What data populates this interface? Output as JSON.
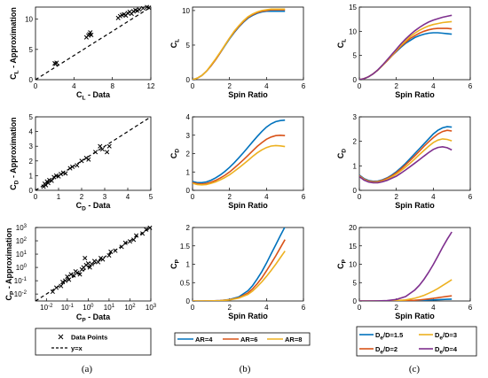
{
  "figure": {
    "panel_letters": [
      "(a)",
      "(b)",
      "(c)"
    ],
    "legend_a": [
      {
        "label": "Data Points",
        "marker": "x"
      },
      {
        "label": "y=x",
        "marker": "dashed-line"
      }
    ],
    "legend_b": [
      {
        "label": "AR=4",
        "color": "#0072BD"
      },
      {
        "label": "AR=6",
        "color": "#D95319"
      },
      {
        "label": "AR=8",
        "color": "#EDB120"
      }
    ],
    "legend_c": [
      {
        "label": "D",
        "sub": "e",
        "suffix": "/D=1.5",
        "color": "#0072BD"
      },
      {
        "label": "D",
        "sub": "e",
        "suffix": "/D=3",
        "color": "#EDB120"
      },
      {
        "label": "D",
        "sub": "e",
        "suffix": "/D=2",
        "color": "#D95319"
      },
      {
        "label": "D",
        "sub": "e",
        "suffix": "/D=4",
        "color": "#7E2F8E"
      }
    ]
  },
  "chart_data": [
    {
      "id": "a1",
      "type": "scatter",
      "xlabel": "C",
      "xlabel_sub": "L",
      "xlabel_suffix": " - Data",
      "ylabel": "C",
      "ylabel_sub": "L",
      "ylabel_suffix": " - Approximation",
      "xlim": [
        0,
        12
      ],
      "ylim": [
        0,
        12
      ],
      "xticks": [
        0,
        4,
        8,
        12
      ],
      "yticks": [
        0,
        5,
        10
      ],
      "reference_line": "y=x",
      "points": [
        [
          2.0,
          2.7
        ],
        [
          2.1,
          2.6
        ],
        [
          2.2,
          2.8
        ],
        [
          5.3,
          7.0
        ],
        [
          5.5,
          7.3
        ],
        [
          5.6,
          7.5
        ],
        [
          5.7,
          7.8
        ],
        [
          5.8,
          7.4
        ],
        [
          8.6,
          10.2
        ],
        [
          8.8,
          10.5
        ],
        [
          9.0,
          10.7
        ],
        [
          9.2,
          10.8
        ],
        [
          9.4,
          10.6
        ],
        [
          9.6,
          11.0
        ],
        [
          9.8,
          11.2
        ],
        [
          10.0,
          10.9
        ],
        [
          10.2,
          11.3
        ],
        [
          10.4,
          11.5
        ],
        [
          10.6,
          11.4
        ],
        [
          10.8,
          11.6
        ],
        [
          11.2,
          11.8
        ],
        [
          11.6,
          12.0
        ],
        [
          11.8,
          11.9
        ]
      ]
    },
    {
      "id": "b1",
      "type": "line",
      "xlabel": "Spin Ratio",
      "ylabel": "C",
      "ylabel_sub": "L",
      "xlim": [
        0,
        6
      ],
      "ylim": [
        0,
        10.5
      ],
      "xticks": [
        0,
        2,
        4,
        6
      ],
      "yticks": [
        0,
        5,
        10
      ],
      "x": [
        0,
        0.25,
        0.5,
        0.75,
        1,
        1.25,
        1.5,
        1.75,
        2,
        2.25,
        2.5,
        2.75,
        3,
        3.25,
        3.5,
        3.75,
        4,
        4.25,
        4.5,
        4.75,
        5
      ],
      "series": [
        {
          "name": "AR=4",
          "color": "#0072BD",
          "values": [
            0,
            0.2,
            0.6,
            1.2,
            2.0,
            2.9,
            3.9,
            4.9,
            5.9,
            6.8,
            7.6,
            8.3,
            8.9,
            9.3,
            9.6,
            9.8,
            9.9,
            9.9,
            9.9,
            9.9,
            9.9
          ]
        },
        {
          "name": "AR=6",
          "color": "#D95319",
          "values": [
            0,
            0.2,
            0.6,
            1.2,
            2.0,
            2.9,
            3.9,
            5.0,
            6.0,
            6.9,
            7.7,
            8.4,
            9.0,
            9.4,
            9.7,
            9.9,
            10.0,
            10.1,
            10.1,
            10.1,
            10.1
          ]
        },
        {
          "name": "AR=8",
          "color": "#EDB120",
          "values": [
            0,
            0.2,
            0.6,
            1.2,
            2.1,
            3.0,
            4.0,
            5.0,
            6.0,
            7.0,
            7.8,
            8.5,
            9.1,
            9.5,
            9.8,
            10.0,
            10.1,
            10.2,
            10.2,
            10.2,
            10.2
          ]
        }
      ]
    },
    {
      "id": "c1",
      "type": "line",
      "xlabel": "Spin Ratio",
      "ylabel": "C",
      "ylabel_sub": "L",
      "xlim": [
        0,
        6
      ],
      "ylim": [
        0,
        15
      ],
      "xticks": [
        0,
        2,
        4,
        6
      ],
      "yticks": [
        0,
        5,
        10,
        15
      ],
      "x": [
        0,
        0.25,
        0.5,
        0.75,
        1,
        1.25,
        1.5,
        1.75,
        2,
        2.25,
        2.5,
        2.75,
        3,
        3.25,
        3.5,
        3.75,
        4,
        4.25,
        4.5,
        4.75,
        5
      ],
      "series": [
        {
          "name": "De/D=1.5",
          "color": "#0072BD",
          "values": [
            0,
            0.2,
            0.6,
            1.2,
            2.0,
            2.9,
            3.9,
            4.9,
            5.8,
            6.7,
            7.5,
            8.1,
            8.7,
            9.1,
            9.4,
            9.6,
            9.7,
            9.7,
            9.6,
            9.5,
            9.4
          ]
        },
        {
          "name": "De/D=2",
          "color": "#D95319",
          "values": [
            0,
            0.2,
            0.6,
            1.2,
            2.0,
            2.9,
            3.9,
            4.9,
            5.9,
            6.9,
            7.7,
            8.5,
            9.1,
            9.6,
            10.0,
            10.3,
            10.5,
            10.6,
            10.6,
            10.6,
            10.5
          ]
        },
        {
          "name": "De/D=3",
          "color": "#EDB120",
          "values": [
            0,
            0.2,
            0.6,
            1.2,
            2.0,
            2.9,
            4.0,
            5.0,
            6.1,
            7.1,
            8.0,
            8.9,
            9.6,
            10.2,
            10.7,
            11.1,
            11.4,
            11.6,
            11.8,
            11.9,
            12.0
          ]
        },
        {
          "name": "De/D=4",
          "color": "#7E2F8E",
          "values": [
            0,
            0.2,
            0.6,
            1.2,
            2.0,
            3.0,
            4.1,
            5.2,
            6.3,
            7.4,
            8.4,
            9.3,
            10.1,
            10.8,
            11.4,
            11.9,
            12.3,
            12.6,
            12.9,
            13.1,
            13.3
          ]
        }
      ]
    },
    {
      "id": "a2",
      "type": "scatter",
      "xlabel": "C",
      "xlabel_sub": "D",
      "xlabel_suffix": " - Data",
      "ylabel": "C",
      "ylabel_sub": "D",
      "ylabel_suffix": " - Approximation",
      "xlim": [
        0,
        5
      ],
      "ylim": [
        0,
        5
      ],
      "xticks": [
        0,
        1,
        2,
        3,
        4,
        5
      ],
      "yticks": [
        0,
        1,
        2,
        3,
        4,
        5
      ],
      "reference_line": "y=x",
      "points": [
        [
          0.35,
          0.25
        ],
        [
          0.4,
          0.45
        ],
        [
          0.45,
          0.35
        ],
        [
          0.5,
          0.6
        ],
        [
          0.55,
          0.5
        ],
        [
          0.6,
          0.7
        ],
        [
          0.7,
          0.65
        ],
        [
          0.8,
          0.9
        ],
        [
          0.9,
          1.0
        ],
        [
          1.0,
          0.95
        ],
        [
          1.1,
          1.1
        ],
        [
          1.2,
          1.2
        ],
        [
          1.3,
          1.15
        ],
        [
          1.5,
          1.5
        ],
        [
          1.6,
          1.6
        ],
        [
          1.8,
          1.7
        ],
        [
          2.0,
          2.0
        ],
        [
          2.2,
          2.2
        ],
        [
          2.3,
          2.1
        ],
        [
          2.6,
          2.6
        ],
        [
          2.8,
          3.0
        ],
        [
          2.9,
          2.8
        ],
        [
          3.1,
          2.6
        ],
        [
          3.2,
          3.0
        ]
      ]
    },
    {
      "id": "b2",
      "type": "line",
      "xlabel": "Spin Ratio",
      "ylabel": "C",
      "ylabel_sub": "D",
      "xlim": [
        0,
        6
      ],
      "ylim": [
        0,
        4
      ],
      "xticks": [
        0,
        2,
        4,
        6
      ],
      "yticks": [
        0,
        1,
        2,
        3,
        4
      ],
      "x": [
        0,
        0.25,
        0.5,
        0.75,
        1,
        1.25,
        1.5,
        1.75,
        2,
        2.25,
        2.5,
        2.75,
        3,
        3.25,
        3.5,
        3.75,
        4,
        4.25,
        4.5,
        4.75,
        5
      ],
      "series": [
        {
          "name": "AR=4",
          "color": "#0072BD",
          "values": [
            0.48,
            0.42,
            0.42,
            0.46,
            0.55,
            0.68,
            0.84,
            1.03,
            1.25,
            1.5,
            1.77,
            2.05,
            2.34,
            2.64,
            2.93,
            3.2,
            3.44,
            3.62,
            3.74,
            3.8,
            3.82
          ]
        },
        {
          "name": "AR=6",
          "color": "#D95319",
          "values": [
            0.42,
            0.36,
            0.34,
            0.37,
            0.44,
            0.54,
            0.67,
            0.82,
            1.0,
            1.21,
            1.43,
            1.66,
            1.9,
            2.15,
            2.39,
            2.6,
            2.78,
            2.9,
            2.98,
            3.0,
            2.98
          ]
        },
        {
          "name": "AR=8",
          "color": "#EDB120",
          "values": [
            0.38,
            0.32,
            0.3,
            0.32,
            0.38,
            0.46,
            0.57,
            0.7,
            0.85,
            1.03,
            1.22,
            1.42,
            1.63,
            1.84,
            2.04,
            2.2,
            2.33,
            2.41,
            2.44,
            2.42,
            2.38
          ]
        }
      ]
    },
    {
      "id": "c2",
      "type": "line",
      "xlabel": "Spin Ratio",
      "ylabel": "C",
      "ylabel_sub": "D",
      "xlim": [
        0,
        6
      ],
      "ylim": [
        0,
        3
      ],
      "xticks": [
        0,
        2,
        4,
        6
      ],
      "yticks": [
        0,
        1,
        2,
        3
      ],
      "x": [
        0,
        0.25,
        0.5,
        0.75,
        1,
        1.25,
        1.5,
        1.75,
        2,
        2.25,
        2.5,
        2.75,
        3,
        3.25,
        3.5,
        3.75,
        4,
        4.25,
        4.5,
        4.75,
        5
      ],
      "series": [
        {
          "name": "De/D=1.5",
          "color": "#0072BD",
          "values": [
            0.62,
            0.48,
            0.4,
            0.37,
            0.38,
            0.43,
            0.51,
            0.62,
            0.76,
            0.92,
            1.1,
            1.3,
            1.5,
            1.7,
            1.9,
            2.1,
            2.3,
            2.45,
            2.55,
            2.6,
            2.58
          ]
        },
        {
          "name": "De/D=2",
          "color": "#D95319",
          "values": [
            0.6,
            0.46,
            0.38,
            0.35,
            0.36,
            0.41,
            0.49,
            0.59,
            0.72,
            0.87,
            1.04,
            1.22,
            1.41,
            1.6,
            1.8,
            1.98,
            2.15,
            2.3,
            2.4,
            2.45,
            2.42
          ]
        },
        {
          "name": "De/D=3",
          "color": "#EDB120",
          "values": [
            0.58,
            0.44,
            0.36,
            0.33,
            0.34,
            0.38,
            0.45,
            0.55,
            0.66,
            0.8,
            0.95,
            1.11,
            1.28,
            1.46,
            1.63,
            1.8,
            1.95,
            2.05,
            2.1,
            2.08,
            2.02
          ]
        },
        {
          "name": "De/D=4",
          "color": "#7E2F8E",
          "values": [
            0.56,
            0.42,
            0.34,
            0.31,
            0.31,
            0.35,
            0.41,
            0.49,
            0.58,
            0.7,
            0.83,
            0.97,
            1.11,
            1.25,
            1.4,
            1.54,
            1.67,
            1.75,
            1.78,
            1.74,
            1.65
          ]
        }
      ]
    },
    {
      "id": "a3",
      "type": "scatter",
      "log": true,
      "xlabel": "C",
      "xlabel_sub": "P",
      "xlabel_suffix": " - Data",
      "ylabel": "C",
      "ylabel_sub": "P",
      "ylabel_suffix": " - Approximation",
      "xlim": [
        0.003,
        1000
      ],
      "ylim": [
        0.003,
        1000
      ],
      "xtick_exps": [
        -2,
        -1,
        0,
        1,
        2,
        3
      ],
      "ytick_exps": [
        -2,
        -1,
        0,
        1,
        2,
        3
      ],
      "reference_line": "y=x",
      "points": [
        [
          0.02,
          0.015
        ],
        [
          0.03,
          0.03
        ],
        [
          0.05,
          0.04
        ],
        [
          0.06,
          0.08
        ],
        [
          0.08,
          0.1
        ],
        [
          0.1,
          0.2
        ],
        [
          0.12,
          0.12
        ],
        [
          0.15,
          0.3
        ],
        [
          0.2,
          0.25
        ],
        [
          0.25,
          0.5
        ],
        [
          0.3,
          0.4
        ],
        [
          0.4,
          0.3
        ],
        [
          0.5,
          0.7
        ],
        [
          0.6,
          1.0
        ],
        [
          0.7,
          5.0
        ],
        [
          0.8,
          1.5
        ],
        [
          1.0,
          2.0
        ],
        [
          1.2,
          1.0
        ],
        [
          1.5,
          1.8
        ],
        [
          2.0,
          3.0
        ],
        [
          3.0,
          2.5
        ],
        [
          4.0,
          5.0
        ],
        [
          5.0,
          4.0
        ],
        [
          10,
          8
        ],
        [
          12,
          15
        ],
        [
          20,
          18
        ],
        [
          40,
          35
        ],
        [
          60,
          70
        ],
        [
          100,
          90
        ],
        [
          150,
          120
        ],
        [
          200,
          250
        ],
        [
          400,
          350
        ],
        [
          600,
          700
        ],
        [
          900,
          950
        ]
      ]
    },
    {
      "id": "b3",
      "type": "line",
      "xlabel": "Spin Ratio",
      "ylabel": "C",
      "ylabel_sub": "P",
      "xlim": [
        0,
        6
      ],
      "ylim": [
        0,
        2
      ],
      "xticks": [
        0,
        2,
        4,
        6
      ],
      "yticks": [
        0,
        0.5,
        1,
        1.5,
        2
      ],
      "x": [
        0,
        0.5,
        1,
        1.5,
        2,
        2.5,
        3,
        3.25,
        3.5,
        3.75,
        4,
        4.25,
        4.5,
        4.75,
        5
      ],
      "series": [
        {
          "name": "AR=4",
          "color": "#0072BD",
          "values": [
            0,
            0,
            0.002,
            0.01,
            0.04,
            0.11,
            0.28,
            0.42,
            0.6,
            0.8,
            1.03,
            1.28,
            1.53,
            1.78,
            2.02
          ]
        },
        {
          "name": "AR=6",
          "color": "#D95319",
          "values": [
            0,
            0,
            0.002,
            0.01,
            0.035,
            0.09,
            0.22,
            0.33,
            0.47,
            0.63,
            0.82,
            1.02,
            1.23,
            1.45,
            1.67
          ]
        },
        {
          "name": "AR=8",
          "color": "#EDB120",
          "values": [
            0,
            0,
            0.002,
            0.008,
            0.03,
            0.08,
            0.18,
            0.27,
            0.39,
            0.52,
            0.67,
            0.83,
            1.0,
            1.18,
            1.36
          ]
        }
      ]
    },
    {
      "id": "c3",
      "type": "line",
      "xlabel": "Spin Ratio",
      "ylabel": "C",
      "ylabel_sub": "P",
      "xlim": [
        0,
        6
      ],
      "ylim": [
        0,
        20
      ],
      "xticks": [
        0,
        2,
        4,
        6
      ],
      "yticks": [
        0,
        5,
        10,
        15,
        20
      ],
      "x": [
        0,
        0.5,
        1,
        1.5,
        2,
        2.5,
        3,
        3.25,
        3.5,
        3.75,
        4,
        4.25,
        4.5,
        4.75,
        5
      ],
      "series": [
        {
          "name": "De/D=1.5",
          "color": "#0072BD",
          "values": [
            0,
            0,
            0,
            0.01,
            0.02,
            0.05,
            0.1,
            0.14,
            0.18,
            0.23,
            0.28,
            0.34,
            0.4,
            0.46,
            0.5
          ]
        },
        {
          "name": "De/D=2",
          "color": "#D95319",
          "values": [
            0,
            0,
            0,
            0.01,
            0.03,
            0.08,
            0.2,
            0.3,
            0.42,
            0.56,
            0.72,
            0.9,
            1.08,
            1.26,
            1.4
          ]
        },
        {
          "name": "De/D=3",
          "color": "#EDB120",
          "values": [
            0,
            0,
            0.01,
            0.03,
            0.1,
            0.3,
            0.75,
            1.1,
            1.55,
            2.1,
            2.7,
            3.4,
            4.2,
            5.0,
            5.8
          ]
        },
        {
          "name": "De/D=4",
          "color": "#7E2F8E",
          "values": [
            0,
            0,
            0.02,
            0.1,
            0.4,
            1.2,
            3.0,
            4.3,
            5.9,
            7.8,
            9.9,
            12.2,
            14.6,
            16.8,
            18.8
          ]
        }
      ]
    }
  ]
}
